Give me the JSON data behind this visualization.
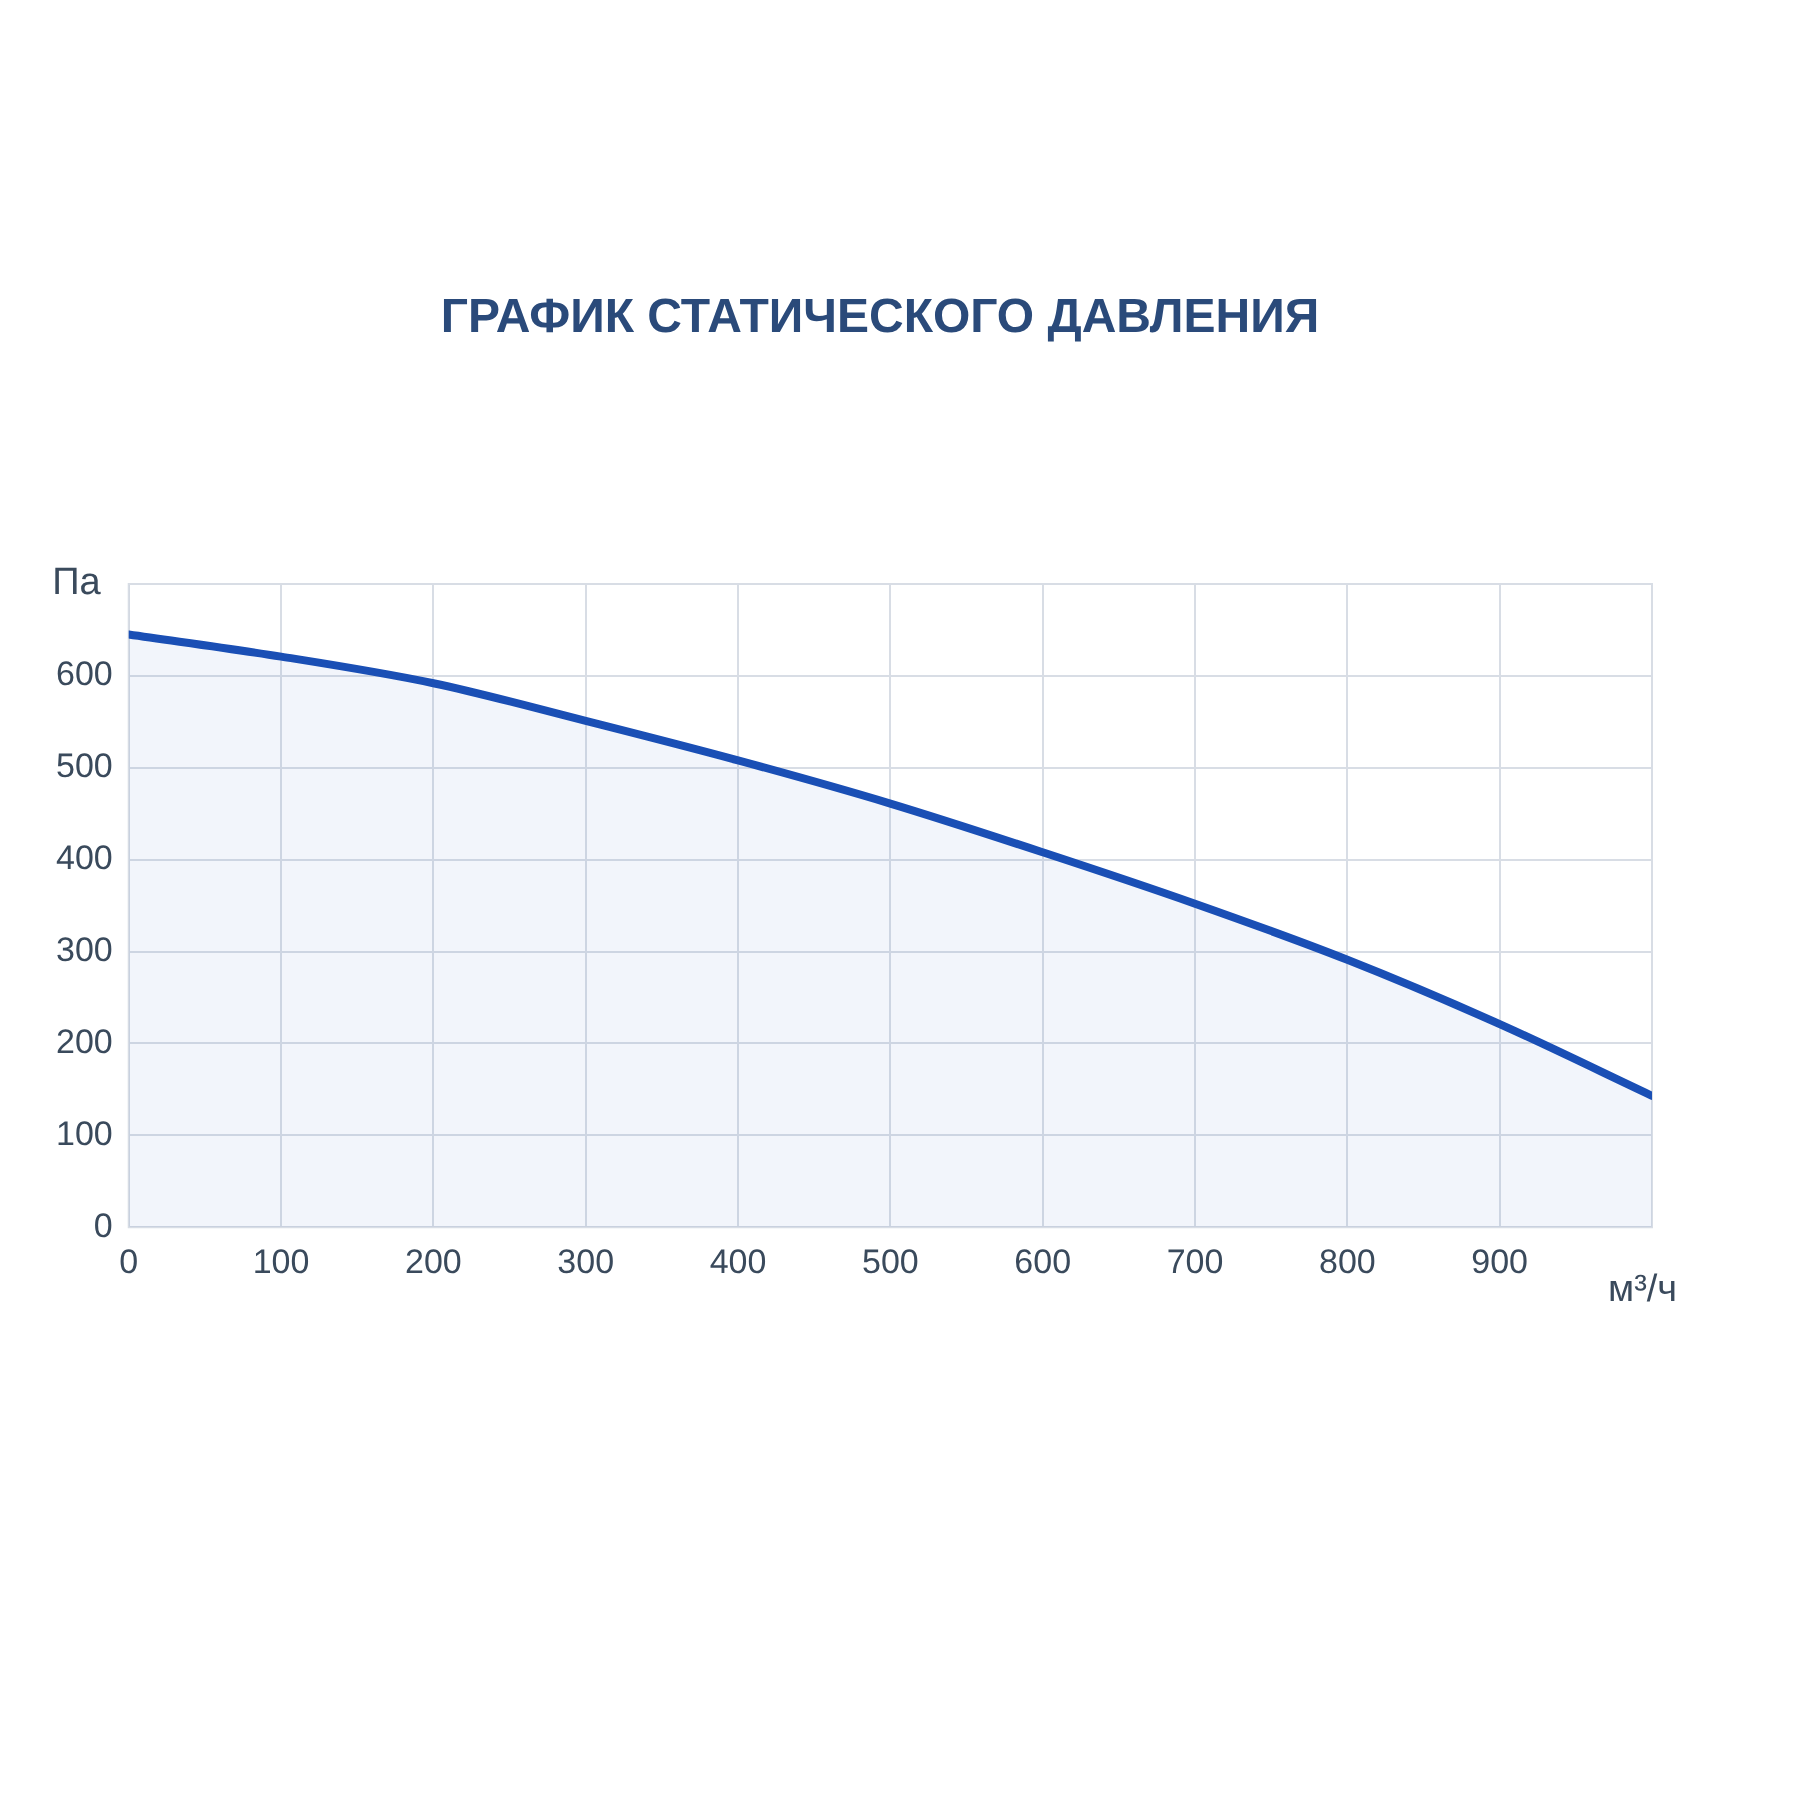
{
  "chart_data": {
    "type": "area",
    "title": "ГРАФИК СТАТИЧЕСКОГО ДАВЛЕНИЯ",
    "xlabel": "м³/ч",
    "ylabel": "Па",
    "x": [
      0,
      100,
      200,
      300,
      400,
      500,
      600,
      700,
      800,
      900,
      1000
    ],
    "series": [
      {
        "color": "#1a4fb5",
        "values": [
          645,
          621,
          592,
          551,
          508,
          461,
          408,
          352,
          291,
          221,
          143
        ]
      }
    ],
    "xlim": [
      0,
      1000
    ],
    "xticks": [
      0,
      100,
      200,
      300,
      400,
      500,
      600,
      700,
      800,
      900,
      {
        "value": 1000,
        "label": null
      }
    ],
    "ylim": [
      0,
      700
    ],
    "yticks": [
      0,
      100,
      200,
      300,
      400,
      500,
      600,
      {
        "value": 700,
        "label": null
      }
    ],
    "grid": true,
    "legend": false,
    "marker": "none",
    "line_style": "solid"
  }
}
